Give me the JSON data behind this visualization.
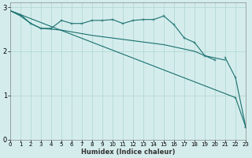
{
  "xlabel": "Humidex (Indice chaleur)",
  "x": [
    0,
    1,
    2,
    3,
    4,
    5,
    6,
    7,
    8,
    9,
    10,
    11,
    12,
    13,
    14,
    15,
    16,
    17,
    18,
    19,
    20,
    21,
    22,
    23
  ],
  "line1_wavy": [
    2.92,
    2.83,
    2.63,
    2.52,
    2.52,
    2.7,
    2.63,
    2.63,
    2.7,
    2.7,
    2.72,
    2.63,
    2.7,
    2.72,
    2.72,
    2.8,
    2.6,
    2.3,
    2.2,
    1.9,
    1.8,
    null,
    null,
    null
  ],
  "line2_smooth": [
    2.92,
    2.8,
    2.63,
    2.52,
    2.5,
    2.48,
    2.44,
    2.4,
    2.36,
    2.33,
    2.3,
    2.27,
    2.24,
    2.21,
    2.18,
    2.15,
    2.1,
    2.05,
    2.0,
    1.9,
    1.85,
    1.8,
    null,
    null
  ],
  "line3_long_diag": [
    2.92,
    null,
    null,
    null,
    null,
    null,
    null,
    null,
    null,
    null,
    null,
    null,
    null,
    null,
    null,
    null,
    null,
    null,
    null,
    null,
    null,
    null,
    0.95,
    0.28
  ],
  "line4_short_diag": [
    null,
    null,
    null,
    null,
    null,
    null,
    null,
    null,
    null,
    null,
    null,
    null,
    null,
    null,
    null,
    null,
    null,
    null,
    null,
    null,
    null,
    1.85,
    1.4,
    0.28
  ],
  "background_color": "#d4edec",
  "grid_color": "#aed4d0",
  "line_color": "#1a7070",
  "ylim": [
    0,
    3.1
  ],
  "xlim": [
    0,
    23
  ],
  "yticks": [
    0,
    1,
    2,
    3
  ],
  "xticks": [
    0,
    1,
    2,
    3,
    4,
    5,
    6,
    7,
    8,
    9,
    10,
    11,
    12,
    13,
    14,
    15,
    16,
    17,
    18,
    19,
    20,
    21,
    22,
    23
  ]
}
